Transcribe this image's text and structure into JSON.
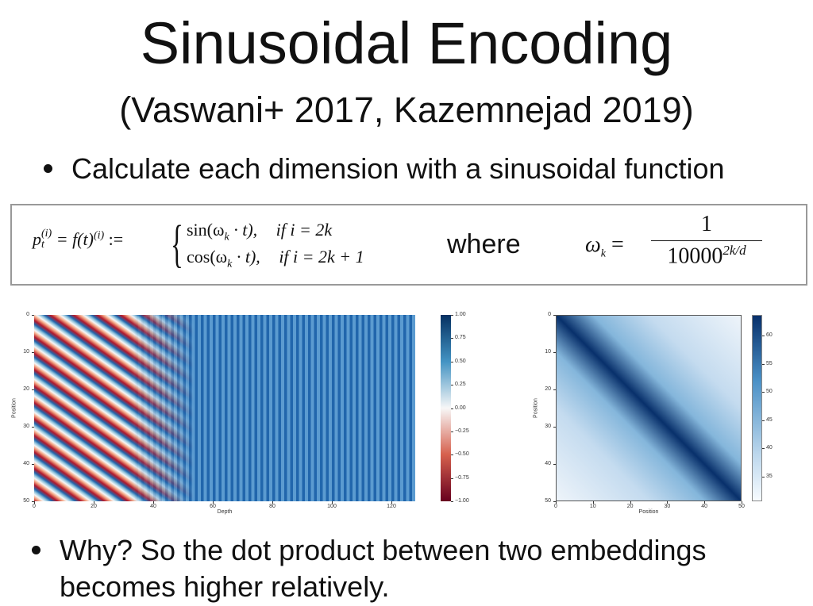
{
  "title": "Sinusoidal Encoding",
  "subtitle": "(Vaswani+ 2017, Kazemnejad 2019)",
  "bullets": [
    "Calculate each dimension with a sinusoidal function",
    "Why? So the dot product between two embeddings becomes higher relatively."
  ],
  "formula": {
    "lhs_base": "p",
    "lhs_sup": "(i)",
    "lhs_sub": "t",
    "lhs_rest": "= f(t)",
    "lhs_sup2": "(i)",
    "assign": ":=",
    "case1_a": "sin(ω",
    "case1_sub": "k",
    "case1_b": "· t),",
    "case1_cond": "if i = 2k",
    "case2_a": "cos(ω",
    "case2_sub": "k",
    "case2_b": "· t),",
    "case2_cond": "if i = 2k + 1",
    "where": "where",
    "omega": "ω",
    "omega_sub": "k",
    "omega_eq": "=",
    "num": "1",
    "den": "10000",
    "den_sup": "2k/d"
  },
  "figures": [
    {
      "x_label": "Depth",
      "y_label": "Position",
      "xticks": [
        0,
        20,
        40,
        60,
        80,
        100,
        120
      ],
      "yticks": [
        0,
        10,
        20,
        30,
        40,
        50
      ],
      "colorbar_ticks": [
        {
          "value": 1,
          "label": "1.00"
        },
        {
          "value": 0.75,
          "label": "0.75"
        },
        {
          "value": 0.5,
          "label": "0.50"
        },
        {
          "value": 0.25,
          "label": "0.25"
        },
        {
          "value": 0,
          "label": "0.00"
        },
        {
          "value": -0.25,
          "label": "−0.25"
        },
        {
          "value": -0.5,
          "label": "−0.50"
        },
        {
          "value": -0.75,
          "label": "−0.75"
        },
        {
          "value": -1,
          "label": "−1.00"
        }
      ]
    },
    {
      "x_label": "Position",
      "y_label": "Position",
      "xticks": [
        0,
        10,
        20,
        30,
        40,
        50
      ],
      "yticks": [
        0,
        10,
        20,
        30,
        40,
        50
      ],
      "colorbar_ticks": [
        60,
        55,
        50,
        45,
        40,
        35
      ]
    }
  ]
}
